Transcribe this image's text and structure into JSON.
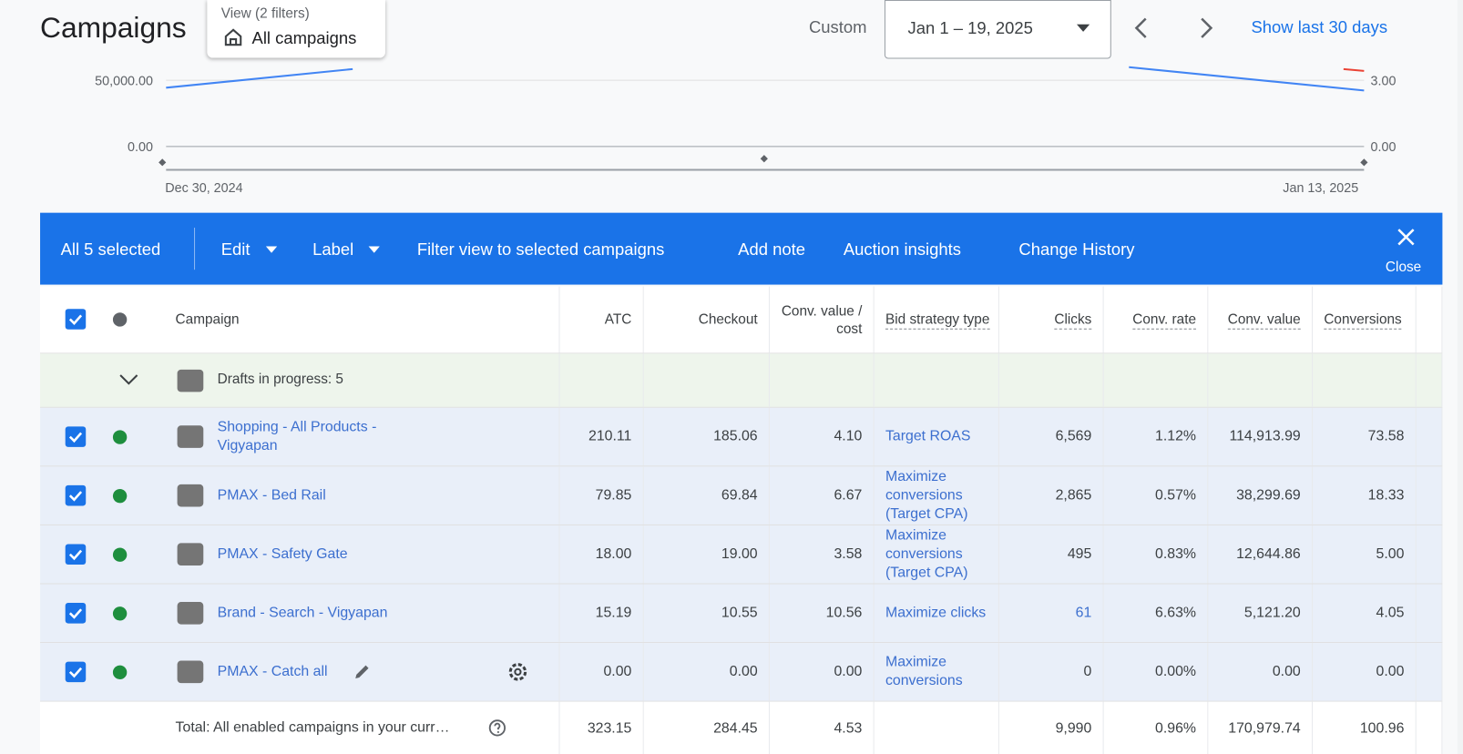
{
  "header": {
    "title": "Campaigns",
    "view_label": "View (2 filters)",
    "view_value": "All campaigns",
    "date_mode": "Custom",
    "date_range": "Jan 1 – 19, 2025",
    "show_last": "Show last 30 days"
  },
  "chart": {
    "y_left": [
      "50,000.00",
      "0.00"
    ],
    "y_right": [
      "3.00",
      "0.00"
    ],
    "x_start": "Dec 30, 2024",
    "x_end": "Jan 13, 2025"
  },
  "action_bar": {
    "selected": "All 5 selected",
    "items": [
      "Edit",
      "Label",
      "Filter view to selected campaigns",
      "Add note",
      "Auction insights",
      "Change History"
    ],
    "close": "Close"
  },
  "table": {
    "columns": [
      "Campaign",
      "ATC",
      "Checkout",
      "Conv. value / cost",
      "Bid strategy type",
      "Clicks",
      "Conv. rate",
      "Conv. value",
      "Conversions"
    ],
    "group": "Drafts in progress: 5",
    "rows": [
      [
        "Shopping - All Products - Vigyapan",
        "210.11",
        "185.06",
        "4.10",
        "Target ROAS",
        "6,569",
        "1.12%",
        "114,913.99",
        "73.58"
      ],
      [
        "PMAX - Bed Rail",
        "79.85",
        "69.84",
        "6.67",
        "Maximize conversions (Target CPA)",
        "2,865",
        "0.57%",
        "38,299.69",
        "18.33"
      ],
      [
        "PMAX - Safety Gate",
        "18.00",
        "19.00",
        "3.58",
        "Maximize conversions (Target CPA)",
        "495",
        "0.83%",
        "12,644.86",
        "5.00"
      ],
      [
        "Brand - Search - Vigyapan",
        "15.19",
        "10.55",
        "10.56",
        "Maximize clicks",
        "61",
        "6.63%",
        "5,121.20",
        "4.05"
      ],
      [
        "PMAX - Catch all",
        "0.00",
        "0.00",
        "0.00",
        "Maximize conversions",
        "0",
        "0.00%",
        "0.00",
        "0.00"
      ]
    ],
    "total": {
      "label": "Total: All enabled campaigns in your curr…",
      "values": [
        "323.15",
        "284.45",
        "4.53",
        "9,990",
        "0.96%",
        "170,979.74",
        "100.96"
      ]
    }
  }
}
